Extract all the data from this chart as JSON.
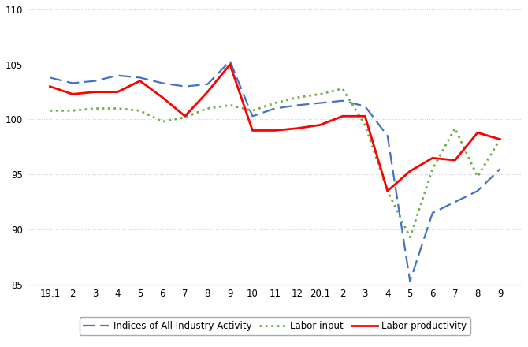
{
  "x_labels": [
    "19.1",
    "2",
    "3",
    "4",
    "5",
    "6",
    "7",
    "8",
    "9",
    "10",
    "11",
    "12",
    "20.1",
    "2",
    "3",
    "4",
    "5",
    "6",
    "7",
    "8",
    "9"
  ],
  "indices_all_industry": [
    103.8,
    103.3,
    103.5,
    104.0,
    103.8,
    103.3,
    103.0,
    103.2,
    105.3,
    100.3,
    101.0,
    101.3,
    101.5,
    101.7,
    101.2,
    98.5,
    85.3,
    91.5,
    92.5,
    93.5,
    95.5
  ],
  "labor_input": [
    100.8,
    100.8,
    101.0,
    101.0,
    100.8,
    99.8,
    100.2,
    101.0,
    101.3,
    100.8,
    101.5,
    102.0,
    102.3,
    102.8,
    99.5,
    93.5,
    89.3,
    95.5,
    99.2,
    94.8,
    98.2
  ],
  "labor_productivity": [
    103.0,
    102.3,
    102.5,
    102.5,
    103.5,
    102.0,
    100.3,
    102.5,
    105.0,
    99.0,
    99.0,
    99.2,
    99.5,
    100.3,
    100.3,
    93.5,
    95.3,
    96.5,
    96.3,
    98.8,
    98.2
  ],
  "ylim": [
    85,
    110
  ],
  "yticks": [
    85,
    90,
    95,
    100,
    105,
    110
  ],
  "series_colors": {
    "indices": "#4472C4",
    "labor_input": "#70AD47",
    "labor_productivity": "#FF0000"
  },
  "legend_labels": [
    "Indices of All Industry Activity",
    "Labor input",
    "Labor productivity"
  ],
  "background_color": "#FFFFFF",
  "grid_color": "#D0D0D0"
}
